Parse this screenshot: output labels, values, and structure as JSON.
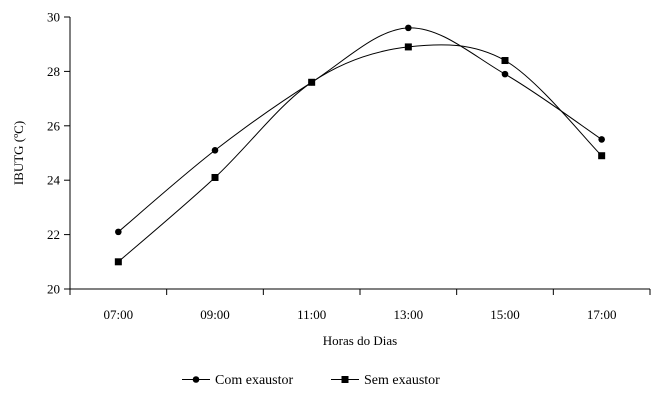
{
  "chart_data": {
    "type": "line",
    "categories": [
      "07:00",
      "09:00",
      "11:00",
      "13:00",
      "15:00",
      "17:00"
    ],
    "series": [
      {
        "name": "Com exaustor",
        "marker": "circle",
        "values": [
          22.1,
          25.1,
          27.6,
          29.6,
          27.9,
          25.5
        ]
      },
      {
        "name": "Sem exaustor",
        "marker": "square",
        "values": [
          21.0,
          24.1,
          27.6,
          28.9,
          28.4,
          24.9
        ]
      }
    ],
    "title": "",
    "xlabel": "Horas do Dias",
    "ylabel": "IBUTG (ºC)",
    "ylim": [
      20,
      30
    ],
    "yticks": [
      "20",
      "22",
      "24",
      "26",
      "28",
      "30"
    ],
    "grid": false,
    "legend": "bottom-center",
    "line_style": "smooth",
    "color": "#000000"
  }
}
